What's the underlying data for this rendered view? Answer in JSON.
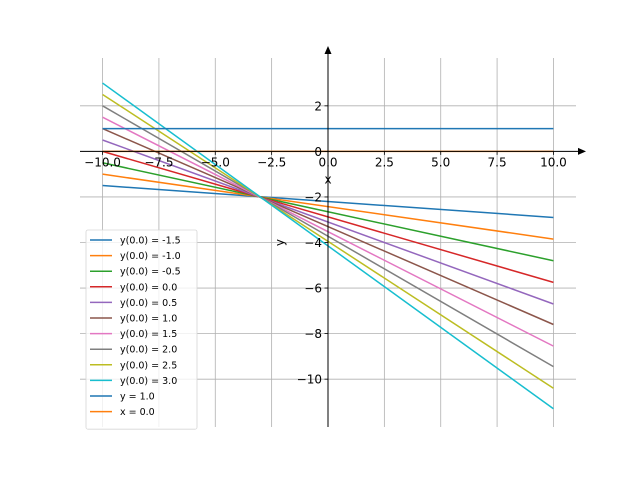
{
  "chart_data": {
    "type": "line",
    "title": "",
    "xlabel": "x",
    "ylabel": "y",
    "xlim": [
      -11,
      11
    ],
    "ylim": [
      -12.1,
      4.1
    ],
    "grid": true,
    "legend_position": "lower-left",
    "x_ticks": [
      -10.0,
      -7.5,
      -5.0,
      -2.5,
      0.0,
      2.5,
      5.0,
      7.5,
      10.0
    ],
    "x_tick_labels": [
      "−10.0",
      "−7.5",
      "−5.0",
      "−2.5",
      "0.0",
      "2.5",
      "5.0",
      "7.5",
      "10.0"
    ],
    "y_ticks": [
      -10,
      -8,
      -6,
      -4,
      -2,
      0,
      2
    ],
    "y_tick_labels": [
      "−10",
      "−8",
      "−6",
      "−4",
      "−2",
      "0",
      "2"
    ],
    "series": [
      {
        "name": "y(0.0) = -1.5",
        "color": "#1f77b4",
        "x": [
          -10.0,
          10.0
        ],
        "y": [
          -1.5,
          -2.9
        ]
      },
      {
        "name": "y(0.0) = -1.0",
        "color": "#ff7f0e",
        "x": [
          -10.0,
          10.0
        ],
        "y": [
          -1.0,
          -3.85
        ]
      },
      {
        "name": "y(0.0) = -0.5",
        "color": "#2ca02c",
        "x": [
          -10.0,
          10.0
        ],
        "y": [
          -0.5,
          -4.8
        ]
      },
      {
        "name": "y(0.0) = 0.0",
        "color": "#d62728",
        "x": [
          -10.0,
          10.0
        ],
        "y": [
          0.0,
          -5.75
        ]
      },
      {
        "name": "y(0.0) = 0.5",
        "color": "#9467bd",
        "x": [
          -10.0,
          10.0
        ],
        "y": [
          0.5,
          -6.7
        ]
      },
      {
        "name": "y(0.0) = 1.0",
        "color": "#8c564b",
        "x": [
          -10.0,
          10.0
        ],
        "y": [
          1.0,
          -7.6
        ]
      },
      {
        "name": "y(0.0) = 1.5",
        "color": "#e377c2",
        "x": [
          -10.0,
          10.0
        ],
        "y": [
          1.5,
          -8.55
        ]
      },
      {
        "name": "y(0.0) = 2.0",
        "color": "#7f7f7f",
        "x": [
          -10.0,
          10.0
        ],
        "y": [
          2.0,
          -9.45
        ]
      },
      {
        "name": "y(0.0) = 2.5",
        "color": "#bcbd22",
        "x": [
          -10.0,
          10.0
        ],
        "y": [
          2.5,
          -10.4
        ]
      },
      {
        "name": "y(0.0) = 3.0",
        "color": "#17becf",
        "x": [
          -10.0,
          10.0
        ],
        "y": [
          3.0,
          -11.3
        ]
      },
      {
        "name": "y = 1.0",
        "color": "#1f77b4",
        "x": [
          -10.0,
          10.0
        ],
        "y": [
          1.0,
          1.0
        ]
      },
      {
        "name": "x = 0.0",
        "color": "#ff7f0e",
        "x": [
          -10.0,
          10.0
        ],
        "y": [
          0.0,
          0.0
        ]
      }
    ]
  }
}
